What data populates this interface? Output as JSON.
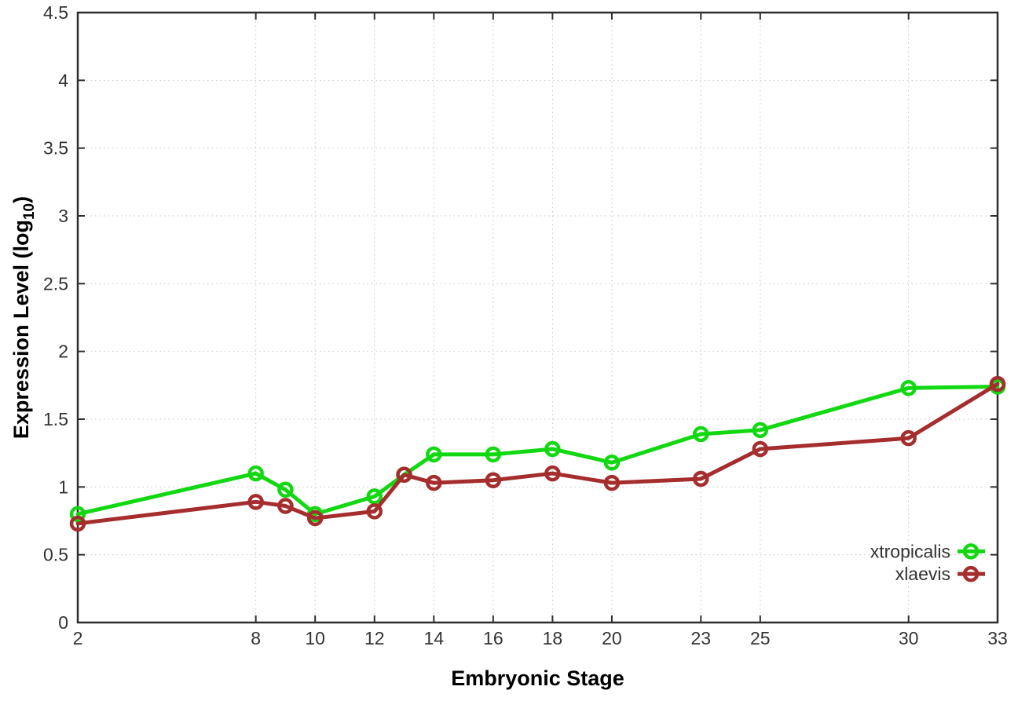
{
  "chart_data": {
    "type": "line",
    "title": "",
    "xlabel": "Embryonic Stage",
    "ylabel": "Expression Level (log10)",
    "ylabel_parts": {
      "prefix": "Expression Level (log",
      "subscript": "10",
      "suffix": ")"
    },
    "x": [
      2,
      8,
      9,
      10,
      12,
      13,
      14,
      16,
      18,
      20,
      23,
      25,
      30,
      33
    ],
    "series": [
      {
        "name": "xtropicalis",
        "color": "#12d812",
        "marker": "open-circle",
        "values": [
          0.8,
          1.1,
          0.98,
          0.8,
          0.93,
          1.09,
          1.24,
          1.24,
          1.28,
          1.18,
          1.39,
          1.42,
          1.73,
          1.74
        ]
      },
      {
        "name": "xlaevis",
        "color": "#a52d2d",
        "marker": "open-circle",
        "values": [
          0.73,
          0.89,
          0.86,
          0.77,
          0.82,
          1.09,
          1.03,
          1.05,
          1.1,
          1.03,
          1.06,
          1.28,
          1.36,
          1.76
        ]
      }
    ],
    "xticks": [
      2,
      8,
      10,
      12,
      14,
      16,
      18,
      20,
      23,
      25,
      30,
      33
    ],
    "yticks": [
      0,
      0.5,
      1,
      1.5,
      2,
      2.5,
      3,
      3.5,
      4,
      4.5
    ],
    "xlim": [
      2,
      33
    ],
    "ylim": [
      0,
      4.5
    ],
    "grid": true,
    "grid_style": "dotted",
    "legend_position": "inside-right-bottom",
    "legend_entries": [
      "xtropicalis",
      "xlaevis"
    ],
    "colors": {
      "background": "#ffffff",
      "grid": "#c6c6c6",
      "axis": "#2e2e2e",
      "tick_text": "#333333",
      "title_text": "#000000"
    }
  }
}
